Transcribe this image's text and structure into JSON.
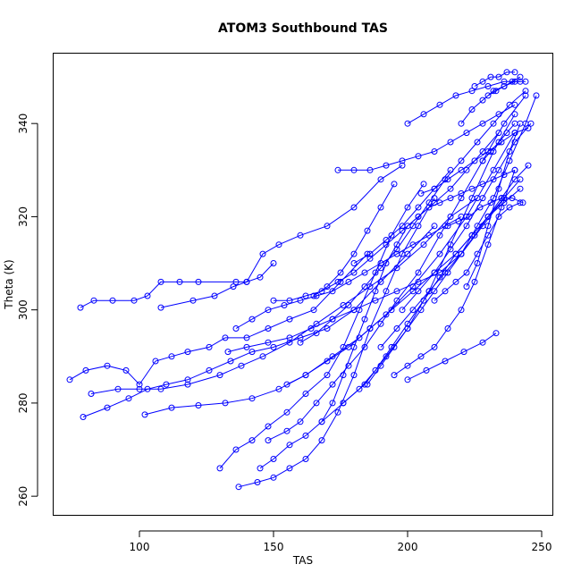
{
  "chart_data": {
    "type": "line",
    "title": "ATOM3 Southbound TAS",
    "xlabel": "TAS",
    "ylabel": "Theta (K)",
    "xlim": [
      68,
      254
    ],
    "ylim": [
      256,
      355
    ],
    "xticks": [
      100,
      150,
      200,
      250
    ],
    "yticks": [
      260,
      280,
      300,
      320,
      340
    ],
    "color": "#0000ff",
    "marker": "open-circle",
    "grid": false,
    "series": [
      {
        "x": [
          78,
          83,
          90,
          98,
          103,
          108,
          115,
          122,
          136,
          140,
          145,
          150
        ],
        "y": [
          300.5,
          302,
          302,
          302,
          303,
          306,
          306,
          306,
          306,
          306,
          307,
          310
        ]
      },
      {
        "x": [
          108,
          120,
          128,
          135,
          140,
          146,
          152,
          160,
          170,
          180,
          190,
          198
        ],
        "y": [
          300.5,
          302,
          303,
          305,
          306,
          312,
          314,
          316,
          318,
          322,
          328,
          331
        ]
      },
      {
        "x": [
          74,
          80,
          88,
          95,
          100,
          106,
          112,
          118,
          126,
          132,
          140,
          148,
          156,
          165,
          175,
          185
        ],
        "y": [
          285,
          287,
          288,
          287,
          284,
          289,
          290,
          291,
          292,
          294,
          294,
          296,
          298,
          300,
          306,
          312
        ]
      },
      {
        "x": [
          79,
          88,
          96,
          103,
          110,
          118,
          126,
          134,
          142,
          150,
          160,
          170,
          180,
          190,
          200,
          210
        ],
        "y": [
          277,
          279,
          281,
          283,
          284,
          285,
          287,
          289,
          291,
          292,
          294,
          296,
          300,
          306,
          312,
          318
        ]
      },
      {
        "x": [
          82,
          92,
          100,
          108,
          118,
          130,
          138,
          146,
          156,
          166,
          176,
          186,
          196,
          206,
          216,
          226
        ],
        "y": [
          282,
          283,
          283,
          283,
          284,
          286,
          288,
          290,
          293,
          297,
          301,
          305,
          309,
          314,
          320,
          324
        ]
      },
      {
        "x": [
          102,
          112,
          122,
          132,
          142,
          152,
          162,
          172,
          182,
          192,
          202,
          212,
          222,
          232,
          240
        ],
        "y": [
          277.5,
          279,
          279.5,
          280,
          281,
          283,
          286,
          290,
          294,
          299,
          305,
          312,
          320,
          330,
          338
        ]
      },
      {
        "x": [
          130,
          136,
          142,
          148,
          155,
          162,
          170,
          176,
          182,
          188,
          194,
          200,
          206
        ],
        "y": [
          266,
          270,
          272,
          275,
          278,
          282,
          286,
          292,
          300,
          308,
          316,
          322,
          327
        ]
      },
      {
        "x": [
          137,
          144,
          150,
          156,
          162,
          168,
          174,
          180,
          186,
          192,
          198,
          204,
          210
        ],
        "y": [
          262,
          263,
          264,
          266,
          268,
          272,
          278,
          286,
          296,
          304,
          312,
          318,
          324
        ]
      },
      {
        "x": [
          145,
          150,
          156,
          162,
          168,
          176,
          184,
          192,
          200,
          208,
          216,
          224,
          232,
          240
        ],
        "y": [
          266,
          268,
          271,
          273,
          276,
          280,
          284,
          290,
          296,
          304,
          314,
          324,
          334,
          342
        ]
      },
      {
        "x": [
          148,
          155,
          160,
          166,
          172,
          178,
          184,
          190,
          196,
          204,
          212,
          220,
          228,
          236,
          244
        ],
        "y": [
          272,
          274,
          276,
          280,
          284,
          288,
          292,
          297,
          302,
          308,
          316,
          324,
          332,
          340,
          346
        ]
      },
      {
        "x": [
          133,
          140,
          148,
          156,
          164,
          172,
          180,
          188,
          196,
          204,
          212,
          220,
          228,
          236
        ],
        "y": [
          291,
          292,
          293,
          294,
          296,
          298,
          300,
          302,
          304,
          306,
          308,
          312,
          318,
          324
        ]
      },
      {
        "x": [
          136,
          142,
          148,
          154,
          160,
          166,
          172,
          178,
          184,
          190,
          196,
          202,
          208,
          214,
          220
        ],
        "y": [
          296,
          298,
          300,
          301,
          302,
          303,
          304,
          306,
          308,
          310,
          312,
          314,
          316,
          318,
          320
        ]
      },
      {
        "x": [
          150,
          156,
          162,
          168,
          174,
          180,
          186,
          192,
          198,
          204,
          210,
          216,
          222,
          228,
          234
        ],
        "y": [
          302,
          302,
          303,
          304,
          306,
          308,
          311,
          314,
          317,
          320,
          323,
          326,
          330,
          334,
          338
        ]
      },
      {
        "x": [
          155,
          162,
          170,
          178,
          186,
          194,
          202,
          210,
          218,
          224,
          230,
          236,
          242
        ],
        "y": [
          284,
          286,
          289,
          292,
          296,
          300,
          304,
          308,
          312,
          316,
          320,
          324,
          328
        ]
      },
      {
        "x": [
          160,
          166,
          172,
          178,
          184,
          190,
          196,
          202,
          208,
          214,
          220,
          226,
          232,
          238,
          244
        ],
        "y": [
          293,
          295,
          298,
          301,
          305,
          309,
          313,
          318,
          323,
          328,
          332,
          336,
          340,
          344,
          347
        ]
      },
      {
        "x": [
          168,
          172,
          176,
          180,
          184,
          188,
          192,
          196,
          200,
          204,
          208,
          212,
          216,
          220,
          224,
          228,
          232,
          236,
          240
        ],
        "y": [
          276,
          280,
          286,
          292,
          298,
          304,
          310,
          314,
          318,
          320,
          322,
          323,
          324,
          325,
          326,
          327,
          328,
          329,
          330
        ]
      },
      {
        "x": [
          174,
          180,
          186,
          192,
          198,
          204,
          210,
          216,
          222,
          228,
          234,
          240
        ],
        "y": [
          330,
          330,
          330,
          331,
          332,
          333,
          334,
          336,
          338,
          340,
          342,
          344
        ]
      },
      {
        "x": [
          176,
          182,
          188,
          194,
          200,
          206,
          212,
          218,
          224,
          230,
          236,
          242
        ],
        "y": [
          280,
          283,
          287,
          292,
          297,
          302,
          307,
          312,
          316,
          320,
          323,
          326
        ]
      },
      {
        "x": [
          185,
          190,
          195,
          200,
          205,
          210,
          215,
          220,
          225,
          230,
          235,
          240,
          245
        ],
        "y": [
          284,
          288,
          292,
          296,
          300,
          304,
          308,
          312,
          316,
          320,
          324,
          328,
          331
        ]
      },
      {
        "x": [
          190,
          196,
          202,
          208,
          214,
          220,
          226,
          232,
          238,
          244,
          248
        ],
        "y": [
          292,
          296,
          300,
          304,
          308,
          312,
          318,
          324,
          332,
          340,
          346
        ]
      },
      {
        "x": [
          195,
          200,
          205,
          210,
          215,
          220,
          225,
          230,
          235,
          240
        ],
        "y": [
          286,
          288,
          290,
          292,
          296,
          300,
          306,
          314,
          322,
          330
        ]
      },
      {
        "x": [
          198,
          204,
          210,
          216,
          222,
          228,
          234,
          240,
          246
        ],
        "y": [
          300,
          304,
          308,
          313,
          318,
          324,
          330,
          336,
          340
        ]
      },
      {
        "x": [
          200,
          206,
          212,
          218,
          224,
          230,
          236,
          242
        ],
        "y": [
          340,
          342,
          344,
          346,
          347,
          348,
          349,
          349
        ]
      },
      {
        "x": [
          205,
          210,
          215,
          220,
          225,
          230,
          235,
          240,
          245
        ],
        "y": [
          325,
          326,
          328,
          330,
          332,
          334,
          336,
          338,
          339
        ]
      },
      {
        "x": [
          210,
          214,
          218,
          222,
          226,
          230,
          234,
          238,
          242
        ],
        "y": [
          302,
          304,
          306,
          308,
          312,
          316,
          320,
          322,
          323
        ]
      },
      {
        "x": [
          215,
          219,
          223,
          227,
          231,
          235,
          239,
          243
        ],
        "y": [
          318,
          319,
          320,
          322,
          323,
          324,
          324,
          323
        ]
      },
      {
        "x": [
          220,
          224,
          228,
          232,
          236,
          240,
          244
        ],
        "y": [
          340,
          343,
          345,
          347,
          348,
          349,
          349
        ]
      },
      {
        "x": [
          222,
          226,
          230,
          234,
          238,
          242
        ],
        "y": [
          305,
          310,
          318,
          326,
          334,
          340
        ]
      },
      {
        "x": [
          225,
          228,
          231,
          234,
          237,
          240
        ],
        "y": [
          348,
          349,
          350,
          350,
          351,
          351
        ]
      },
      {
        "x": [
          228,
          231,
          234,
          237,
          240
        ],
        "y": [
          332,
          334,
          336,
          338,
          340
        ]
      },
      {
        "x": [
          230,
          233,
          236,
          239,
          242
        ],
        "y": [
          346,
          347,
          348,
          349,
          350
        ]
      },
      {
        "x": [
          200,
          207,
          214,
          221,
          228,
          233
        ],
        "y": [
          285,
          287,
          289,
          291,
          293,
          295
        ]
      },
      {
        "x": [
          180,
          186,
          192,
          198,
          204,
          210,
          216
        ],
        "y": [
          310,
          312,
          315,
          318,
          322,
          326,
          330
        ]
      },
      {
        "x": [
          165,
          170,
          175,
          180,
          185,
          190,
          195
        ],
        "y": [
          303,
          305,
          308,
          312,
          317,
          322,
          327
        ]
      }
    ]
  }
}
